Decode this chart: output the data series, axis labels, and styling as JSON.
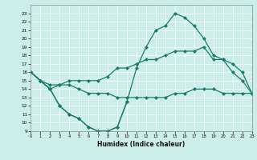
{
  "xlabel": "Humidex (Indice chaleur)",
  "background_color": "#cceee8",
  "grid_color": "#aadddd",
  "line_color": "#1a7a6e",
  "xlim": [
    0,
    23
  ],
  "ylim": [
    9,
    24
  ],
  "xticks": [
    0,
    1,
    2,
    3,
    4,
    5,
    6,
    7,
    8,
    9,
    10,
    11,
    12,
    13,
    14,
    15,
    16,
    17,
    18,
    19,
    20,
    21,
    22,
    23
  ],
  "yticks": [
    9,
    10,
    11,
    12,
    13,
    14,
    15,
    16,
    17,
    18,
    19,
    20,
    21,
    22,
    23
  ],
  "line_max_x": [
    0,
    1,
    2,
    3,
    4,
    5,
    6,
    7,
    8,
    9,
    10,
    11,
    12,
    13,
    14,
    15,
    16,
    17,
    18,
    19,
    20,
    21,
    22,
    23
  ],
  "line_max_y": [
    16.0,
    15.0,
    14.0,
    12.0,
    11.0,
    10.5,
    9.5,
    9.0,
    9.0,
    9.5,
    12.5,
    16.5,
    19.0,
    21.0,
    21.5,
    23.0,
    22.5,
    21.5,
    20.0,
    18.0,
    17.5,
    16.0,
    15.0,
    13.5
  ],
  "line_mid_x": [
    0,
    1,
    2,
    3,
    4,
    5,
    6,
    7,
    8,
    9,
    10,
    11,
    12,
    13,
    14,
    15,
    16,
    17,
    18,
    19,
    20,
    21,
    22,
    23
  ],
  "line_mid_y": [
    16.0,
    15.0,
    14.5,
    14.5,
    15.0,
    15.0,
    15.0,
    15.0,
    15.5,
    16.5,
    16.5,
    17.0,
    17.5,
    17.5,
    18.0,
    18.5,
    18.5,
    18.5,
    19.0,
    17.5,
    17.5,
    17.0,
    16.0,
    13.5
  ],
  "line_low_x": [
    0,
    1,
    2,
    3,
    4,
    5,
    6,
    7,
    8,
    9,
    10,
    11,
    12,
    13,
    14,
    15,
    16,
    17,
    18,
    19,
    20,
    21,
    22,
    23
  ],
  "line_low_y": [
    16.0,
    15.0,
    14.0,
    14.5,
    14.5,
    14.0,
    13.5,
    13.5,
    13.5,
    13.0,
    13.0,
    13.0,
    13.0,
    13.0,
    13.0,
    13.5,
    13.5,
    14.0,
    14.0,
    14.0,
    13.5,
    13.5,
    13.5,
    13.5
  ],
  "line_bot_x": [
    0,
    1,
    2,
    3,
    4,
    5,
    6,
    7,
    8,
    9,
    10
  ],
  "line_bot_y": [
    16.0,
    15.0,
    14.0,
    12.0,
    11.0,
    10.5,
    9.5,
    9.0,
    9.0,
    9.5,
    12.5
  ]
}
